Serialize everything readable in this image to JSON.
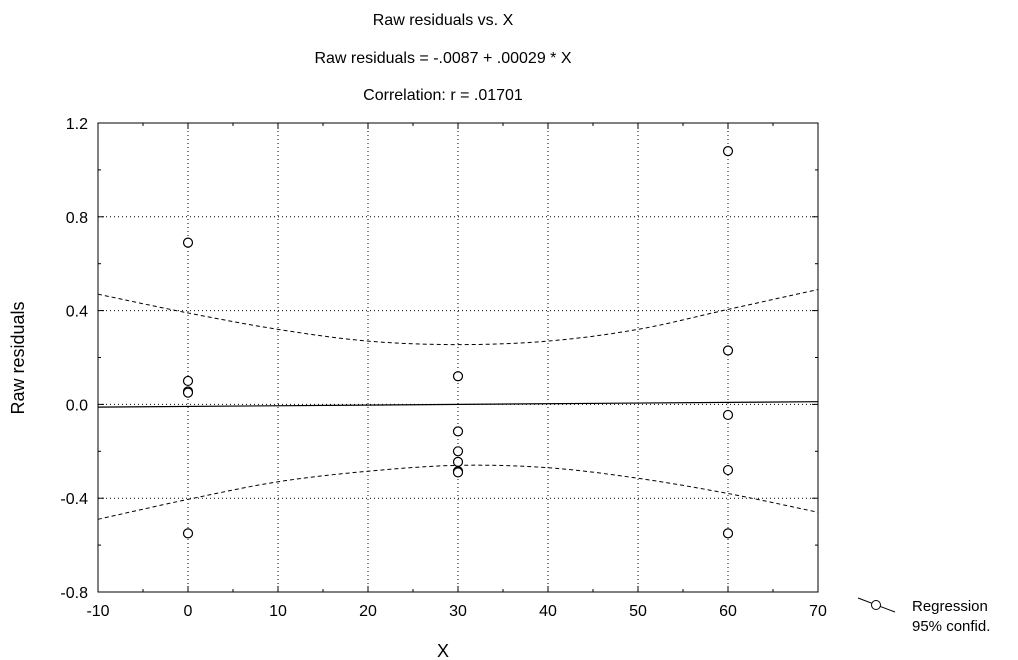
{
  "chart_data": {
    "type": "scatter",
    "title": "Raw residuals vs. X",
    "subtitle_equation": "Raw residuals = -.0087 + .00029 * X",
    "subtitle_correlation": "Correlation: r = .01701",
    "xlabel": "X",
    "ylabel": "Raw residuals",
    "xlim": [
      -10,
      70
    ],
    "ylim": [
      -0.8,
      1.2
    ],
    "xticks": [
      -10,
      0,
      10,
      20,
      30,
      40,
      50,
      60,
      70
    ],
    "xtick_labels": [
      "-10",
      "0",
      "10",
      "20",
      "30",
      "40",
      "50",
      "60",
      "70"
    ],
    "yticks": [
      -0.8,
      -0.4,
      0.0,
      0.4,
      0.8,
      1.2
    ],
    "ytick_labels": [
      "-0.8",
      "-0.4",
      "0.0",
      "0.4",
      "0.8",
      "1.2"
    ],
    "grid": true,
    "points": {
      "x": [
        0,
        0,
        0,
        0,
        0,
        30,
        30,
        30,
        30,
        30,
        30,
        60,
        60,
        60,
        60,
        60
      ],
      "y": [
        0.69,
        0.1,
        0.055,
        0.05,
        -0.55,
        0.12,
        -0.115,
        -0.2,
        -0.245,
        -0.285,
        -0.29,
        1.08,
        0.23,
        -0.045,
        -0.28,
        -0.55
      ]
    },
    "regression": {
      "intercept": -0.0087,
      "slope": 0.00029
    },
    "confidence_band": {
      "x": [
        -10,
        0,
        10,
        20,
        30,
        40,
        50,
        60,
        70
      ],
      "upper": [
        0.47,
        0.39,
        0.32,
        0.27,
        0.255,
        0.27,
        0.32,
        0.405,
        0.49
      ],
      "lower": [
        -0.49,
        -0.405,
        -0.33,
        -0.285,
        -0.26,
        -0.27,
        -0.315,
        -0.38,
        -0.46
      ]
    },
    "legend": {
      "position": "bottom-right, outside plot",
      "entries": [
        "Regression",
        "95% confid."
      ]
    }
  }
}
